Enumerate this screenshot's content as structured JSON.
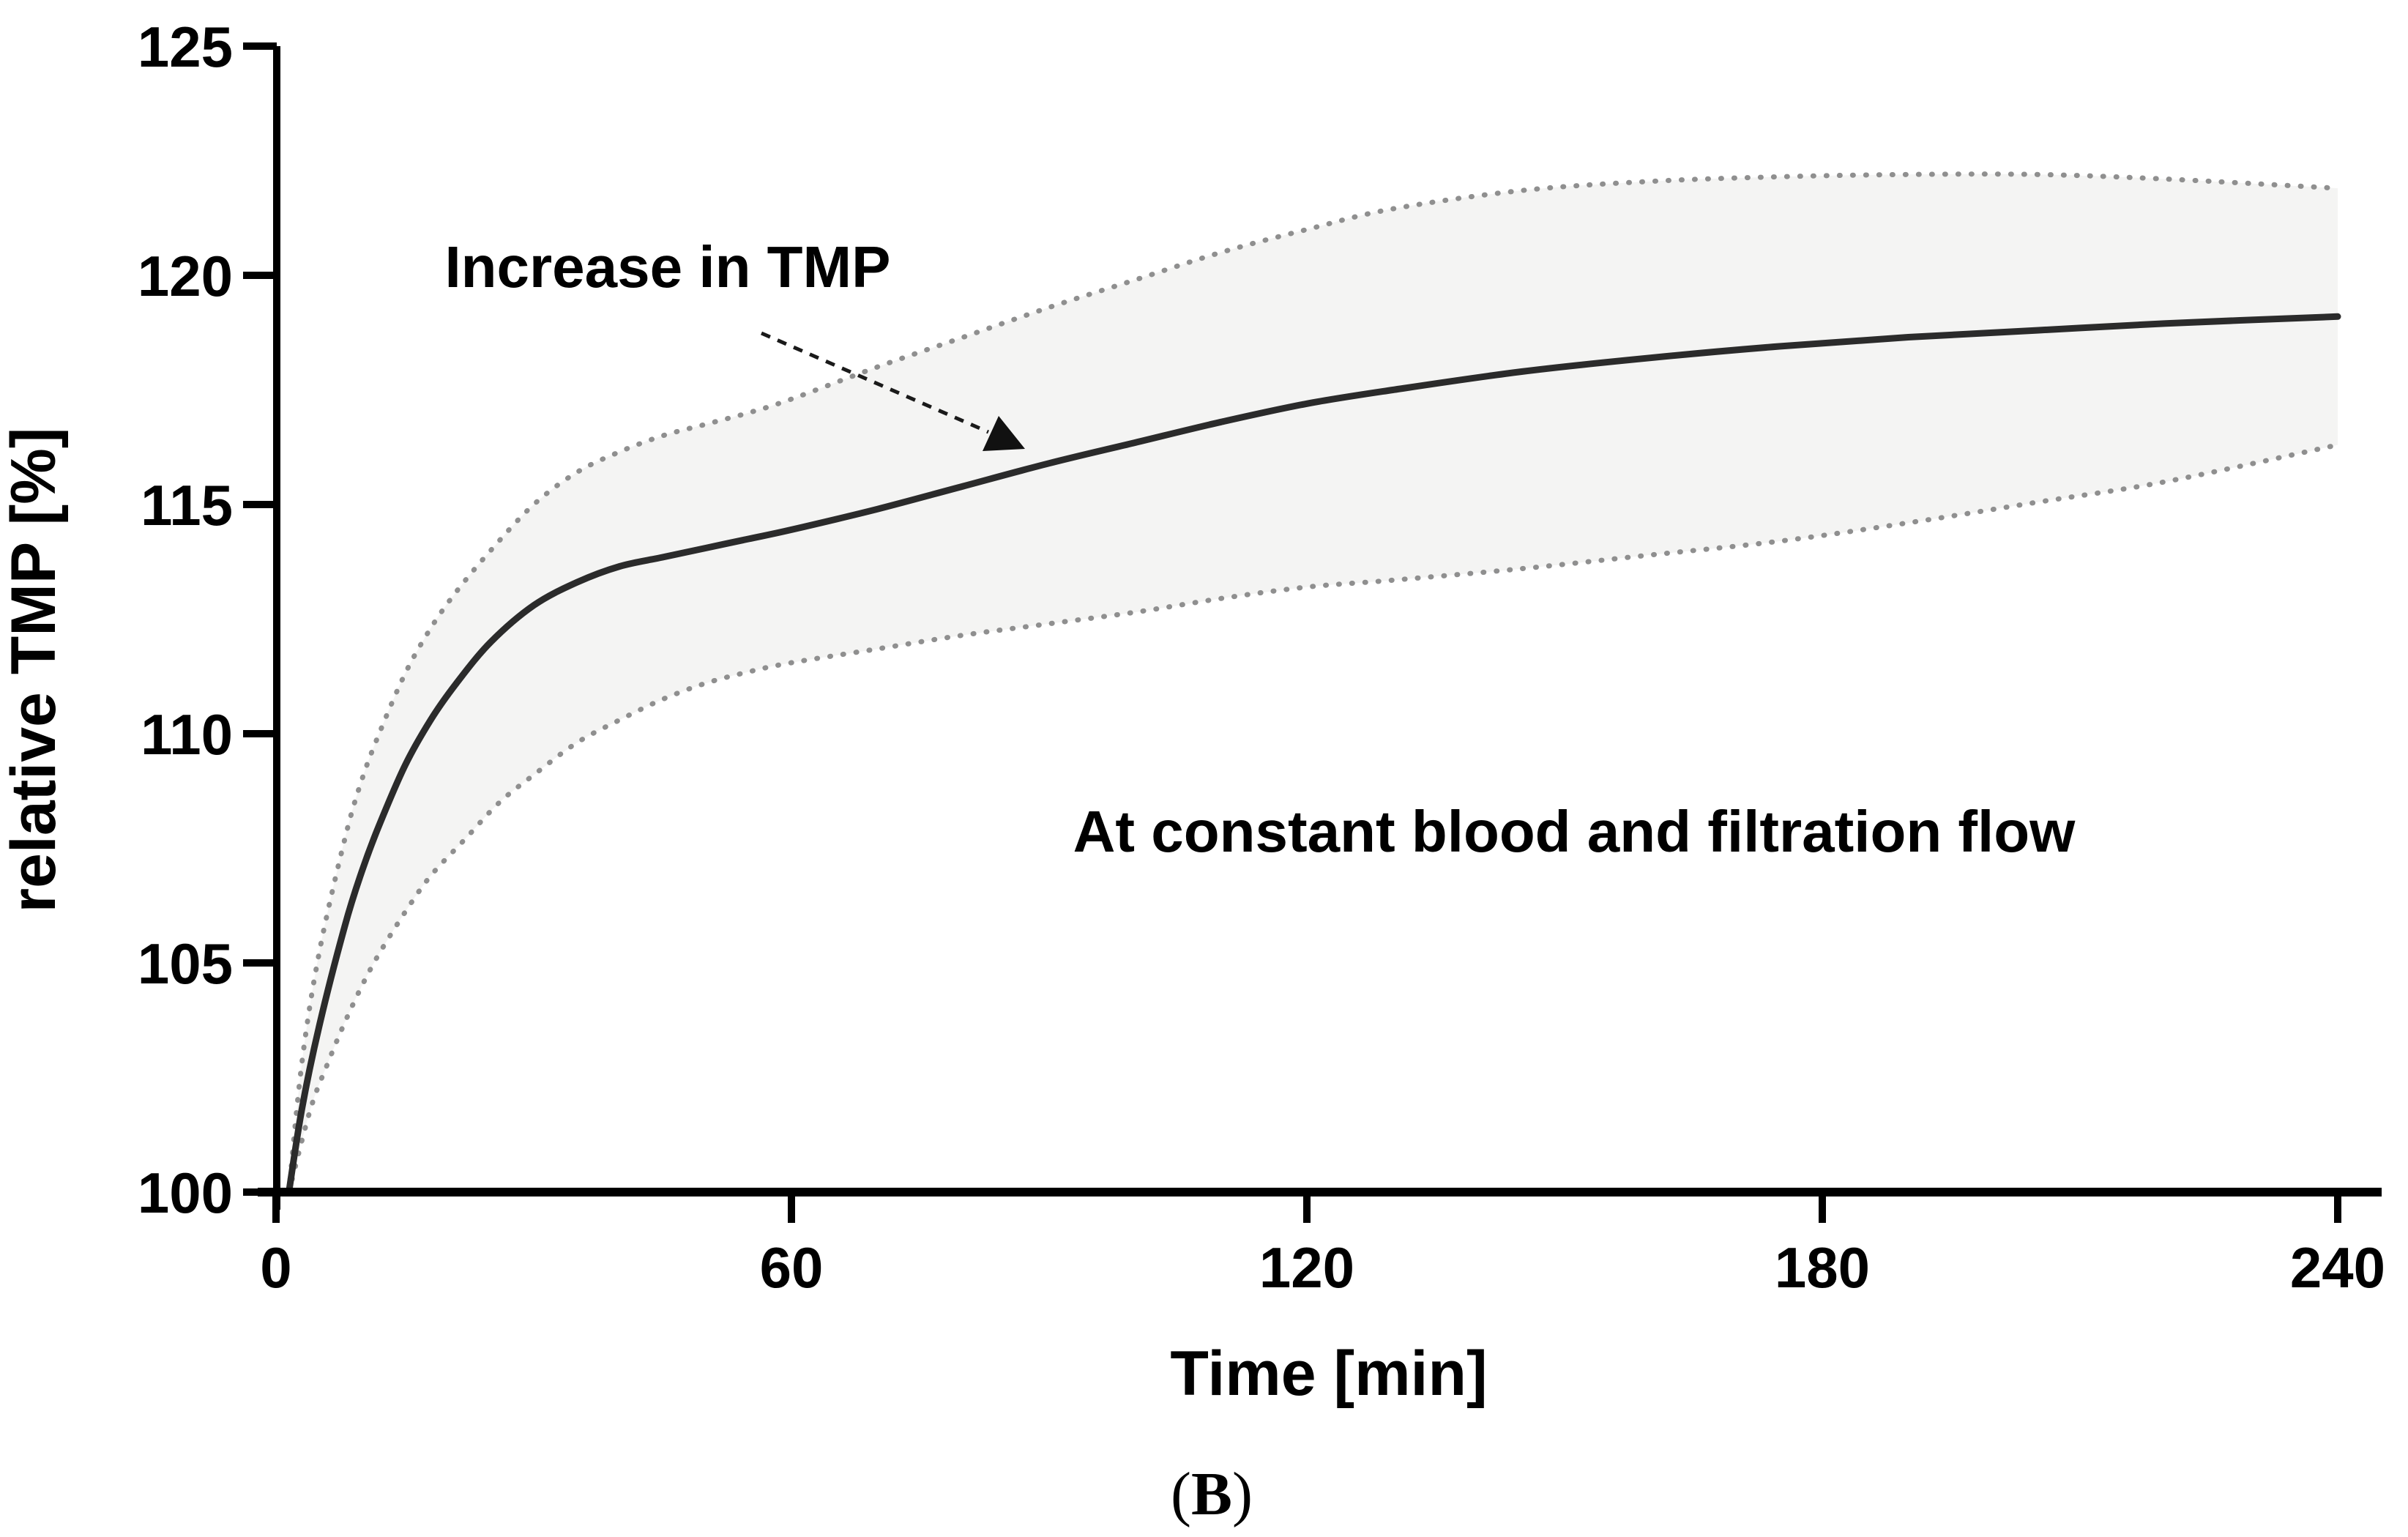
{
  "figure": {
    "caption_prefix": "(",
    "caption_letter": "B",
    "caption_suffix": ")"
  },
  "chart_data": {
    "type": "line",
    "title": "",
    "xlabel": "Time [min]",
    "ylabel": "relative TMP [%]",
    "xlim": [
      0,
      240
    ],
    "ylim": [
      100,
      125
    ],
    "x_ticks": [
      0,
      60,
      120,
      180,
      240
    ],
    "y_ticks": [
      100,
      105,
      110,
      115,
      120,
      125
    ],
    "grid": false,
    "legend": "none",
    "colors": {
      "main_line": "#2b2b2b",
      "band_line": "#8f8f8f",
      "band_fill": "#f4f4f3",
      "axis": "#000000",
      "arrow": "#1a1a1a"
    },
    "annotations": [
      {
        "text": "Increase in TMP",
        "target": "points to mean curve near t=88 min"
      },
      {
        "text": "At constant blood and filtration flow"
      }
    ],
    "series": [
      {
        "name": "mean relative TMP",
        "style": "solid",
        "points": [
          [
            1.5,
            100
          ],
          [
            3,
            101.8
          ],
          [
            5,
            103.6
          ],
          [
            8,
            105.8
          ],
          [
            10,
            107.0
          ],
          [
            12,
            108.0
          ],
          [
            15,
            109.3
          ],
          [
            18,
            110.3
          ],
          [
            21,
            111.1
          ],
          [
            25,
            112.0
          ],
          [
            30,
            112.8
          ],
          [
            35,
            113.3
          ],
          [
            40,
            113.65
          ],
          [
            45,
            113.85
          ],
          [
            50,
            114.05
          ],
          [
            55,
            114.25
          ],
          [
            60,
            114.45
          ],
          [
            70,
            114.9
          ],
          [
            80,
            115.4
          ],
          [
            90,
            115.9
          ],
          [
            100,
            116.35
          ],
          [
            110,
            116.8
          ],
          [
            120,
            117.2
          ],
          [
            130,
            117.5
          ],
          [
            145,
            117.9
          ],
          [
            160,
            118.2
          ],
          [
            175,
            118.45
          ],
          [
            190,
            118.65
          ],
          [
            205,
            118.8
          ],
          [
            220,
            118.95
          ],
          [
            240,
            119.1
          ]
        ]
      },
      {
        "name": "upper bound (dotted)",
        "style": "dotted",
        "points": [
          [
            1.5,
            100
          ],
          [
            3,
            102.8
          ],
          [
            5,
            105.2
          ],
          [
            8,
            107.7
          ],
          [
            10,
            109.0
          ],
          [
            12,
            110.0
          ],
          [
            15,
            111.3
          ],
          [
            18,
            112.3
          ],
          [
            21,
            113.1
          ],
          [
            25,
            114.0
          ],
          [
            30,
            115.0
          ],
          [
            35,
            115.7
          ],
          [
            40,
            116.15
          ],
          [
            45,
            116.5
          ],
          [
            50,
            116.75
          ],
          [
            55,
            117.0
          ],
          [
            60,
            117.3
          ],
          [
            70,
            118.0
          ],
          [
            80,
            118.65
          ],
          [
            90,
            119.3
          ],
          [
            100,
            119.9
          ],
          [
            110,
            120.5
          ],
          [
            120,
            121.0
          ],
          [
            130,
            121.45
          ],
          [
            145,
            121.85
          ],
          [
            160,
            122.05
          ],
          [
            175,
            122.15
          ],
          [
            190,
            122.2
          ],
          [
            205,
            122.2
          ],
          [
            220,
            122.1
          ],
          [
            240,
            121.9
          ]
        ]
      },
      {
        "name": "lower bound (dotted)",
        "style": "dotted",
        "points": [
          [
            1.5,
            100
          ],
          [
            4,
            101.8
          ],
          [
            6,
            102.8
          ],
          [
            8,
            103.7
          ],
          [
            10,
            104.5
          ],
          [
            12,
            105.2
          ],
          [
            15,
            106.1
          ],
          [
            18,
            106.9
          ],
          [
            22,
            107.7
          ],
          [
            26,
            108.5
          ],
          [
            30,
            109.1
          ],
          [
            35,
            109.8
          ],
          [
            40,
            110.3
          ],
          [
            45,
            110.75
          ],
          [
            50,
            111.1
          ],
          [
            55,
            111.35
          ],
          [
            60,
            111.55
          ],
          [
            70,
            111.85
          ],
          [
            80,
            112.15
          ],
          [
            90,
            112.4
          ],
          [
            100,
            112.65
          ],
          [
            110,
            112.95
          ],
          [
            120,
            113.2
          ],
          [
            130,
            113.35
          ],
          [
            145,
            113.6
          ],
          [
            160,
            113.9
          ],
          [
            175,
            114.2
          ],
          [
            190,
            114.6
          ],
          [
            205,
            115.05
          ],
          [
            220,
            115.5
          ],
          [
            240,
            116.3
          ]
        ]
      }
    ]
  }
}
